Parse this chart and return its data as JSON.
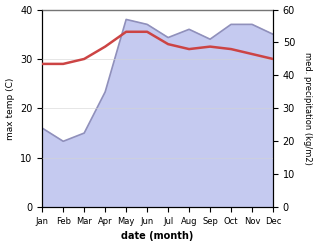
{
  "months": [
    "Jan",
    "Feb",
    "Mar",
    "Apr",
    "May",
    "Jun",
    "Jul",
    "Aug",
    "Sep",
    "Oct",
    "Nov",
    "Dec"
  ],
  "temp_max": [
    29.0,
    29.0,
    30.0,
    32.5,
    35.5,
    35.5,
    33.0,
    32.0,
    32.5,
    32.0,
    31.0,
    30.0
  ],
  "precip": [
    24.0,
    20.0,
    22.5,
    35.0,
    57.0,
    55.5,
    51.5,
    54.0,
    51.0,
    55.5,
    55.5,
    52.5
  ],
  "temp_color": "#cc4444",
  "precip_line_color": "#9090bb",
  "precip_fill_color": "#c5caf0",
  "temp_ylim": [
    0,
    40
  ],
  "precip_ylim": [
    0,
    60
  ],
  "xlabel": "date (month)",
  "ylabel_left": "max temp (C)",
  "ylabel_right": "med. precipitation (kg/m2)",
  "background_color": "#ffffff"
}
